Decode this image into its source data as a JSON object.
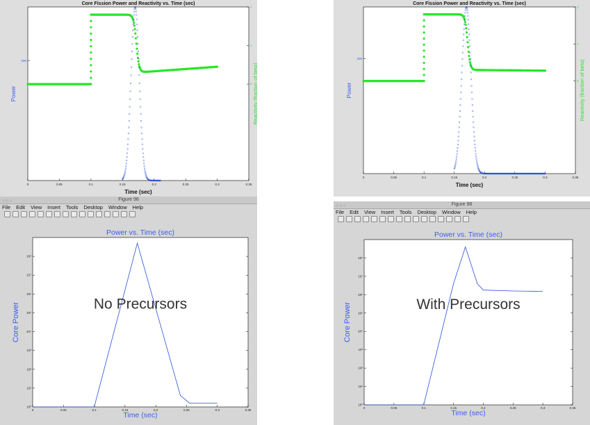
{
  "colors": {
    "power": "#2b4fd8",
    "reactivity": "#29e629",
    "axis": "#000000",
    "ylabel_blue": "#3c5cf0",
    "ylabel_green": "#33dd33",
    "bg": "#dedede",
    "plot_bg": "#ffffff"
  },
  "windows": {
    "bottom_left": {
      "title": "Figure 98",
      "menu": [
        "File",
        "Edit",
        "View",
        "Insert",
        "Tools",
        "Desktop",
        "Window",
        "Help"
      ]
    },
    "bottom_right": {
      "title": "Figure 98",
      "menu": [
        "File",
        "Edit",
        "View",
        "Insert",
        "Tools",
        "Desktop",
        "Window",
        "Help"
      ]
    }
  },
  "chart_data": [
    {
      "id": "top-left",
      "type": "scatter",
      "title": "Core Fission Power and Reactivity vs. Time (sec)",
      "xlabel": "Time (sec)",
      "ylabel": "Power",
      "ylabel_right": "Reactivity (fraction of beta)",
      "xlim": [
        0,
        0.35
      ],
      "xticks": [
        "0",
        "0.05",
        "0.1",
        "0.15",
        "0.2",
        "0.25",
        "0.3",
        "0.35"
      ],
      "ylim_left": [
        0,
        290
      ],
      "yticks_left": [
        "200"
      ],
      "ylim_right": [
        -2.5,
        2
      ],
      "yticks_right": [
        "2",
        "1",
        "0"
      ],
      "series": [
        {
          "kind": "power",
          "peak_time": 0.17,
          "peak_value": 290,
          "width": 0.0065,
          "end_time": 0.21
        },
        {
          "kind": "reactivity",
          "pre_value": 0,
          "jump_time": 0.1,
          "plateau": 1.8,
          "drop_time": 0.172,
          "post_value": 0.3,
          "end_value": 0.45,
          "end_time": 0.3
        }
      ]
    },
    {
      "id": "top-right",
      "type": "scatter",
      "title": "Core Fission Power and Reactivity vs. Time (sec)",
      "xlabel": "Time (sec)",
      "ylabel": "Power",
      "ylabel_right": "Reactivity (fraction of beta)",
      "xlim": [
        0,
        0.35
      ],
      "xticks": [
        "0",
        "0.05",
        "0.1",
        "0.15",
        "0.2",
        "0.25",
        "0.3",
        "0.35"
      ],
      "ylim_left": [
        0,
        290
      ],
      "yticks_left": [
        "200"
      ],
      "ylim_right": [
        -2.5,
        2
      ],
      "yticks_right": [
        "2",
        "1",
        "0"
      ],
      "series": [
        {
          "kind": "power",
          "peak_time": 0.17,
          "peak_value": 290,
          "width": 0.0075,
          "end_time": 0.3,
          "tail_value": 10
        },
        {
          "kind": "reactivity",
          "pre_value": 0,
          "jump_time": 0.1,
          "plateau": 1.8,
          "drop_time": 0.172,
          "post_value": 0.3,
          "end_value": 0.28,
          "end_time": 0.3
        }
      ]
    },
    {
      "id": "bottom-left",
      "type": "line",
      "title": "Power vs. Time (sec)",
      "xlabel": "Time (sec)",
      "ylabel": "Core Power",
      "annotation": "No Precursors",
      "xlim": [
        0,
        0.35
      ],
      "xticks": [
        "0",
        "0.05",
        "0.1",
        "0.15",
        "0.2",
        "0.25",
        "0.3",
        "0.35"
      ],
      "ylim": [
        0,
        9
      ],
      "yticks": [
        "10⁰",
        "10¹",
        "10²",
        "10³",
        "10⁴",
        "10⁵",
        "10⁶",
        "10⁷",
        "10⁸"
      ],
      "log_y": true,
      "x": [
        0,
        0.1,
        0.17,
        0.24,
        0.255,
        0.3
      ],
      "y": [
        0,
        0,
        8.7,
        0.6,
        0.2,
        0.2
      ]
    },
    {
      "id": "bottom-right",
      "type": "line",
      "title": "Power vs. Time (sec)",
      "xlabel": "Time (sec)",
      "ylabel": "Core Power",
      "annotation": "With Precursors",
      "xlim": [
        0,
        0.35
      ],
      "xticks": [
        "0",
        "0.05",
        "0.1",
        "0.15",
        "0.2",
        "0.25",
        "0.3",
        "0.35"
      ],
      "ylim": [
        0,
        9
      ],
      "yticks": [
        "10⁰",
        "10¹",
        "10²",
        "10³",
        "10⁴",
        "10⁵",
        "10⁶",
        "10⁷",
        "10⁸"
      ],
      "log_y": true,
      "x": [
        0,
        0.1,
        0.15,
        0.17,
        0.19,
        0.2,
        0.25,
        0.3
      ],
      "y": [
        0,
        0,
        6.6,
        8.6,
        6.6,
        6.25,
        6.2,
        6.18
      ]
    }
  ]
}
